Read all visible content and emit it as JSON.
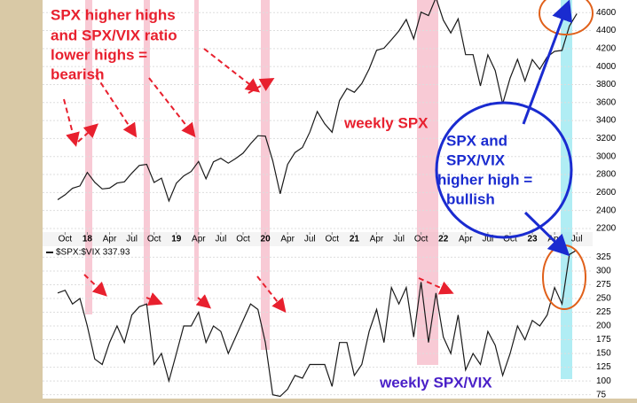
{
  "chart_data": [
    {
      "type": "line",
      "annotations": {
        "bearish": [
          "SPX higher highs",
          "and SPX/VIX ratio",
          "lower highs =",
          "bearish"
        ],
        "weekly": "weekly SPX",
        "bullish": [
          "SPX and",
          "SPX/VIX",
          "higher high =",
          "bullish"
        ]
      },
      "categories": [
        null,
        "Oct",
        null,
        null,
        "18",
        null,
        null,
        "Apr",
        null,
        null,
        "Jul",
        null,
        null,
        "Oct",
        null,
        null,
        "19",
        null,
        null,
        "Apr",
        null,
        null,
        "Jul",
        null,
        null,
        "Oct",
        null,
        null,
        "20",
        null,
        null,
        "Apr",
        null,
        null,
        "Jul",
        null,
        null,
        "Oct",
        null,
        null,
        "21",
        null,
        null,
        "Apr",
        null,
        null,
        "Jul",
        null,
        null,
        "Oct",
        null,
        null,
        "22",
        null,
        null,
        "Apr",
        null,
        null,
        "Jul",
        null,
        null,
        "Oct",
        null,
        null,
        "23",
        null,
        null,
        "Apr",
        null,
        null,
        "Jul"
      ],
      "series": [
        {
          "color": "#1a1a1a",
          "values": [
            2519,
            2575,
            2647,
            2673,
            2823,
            2713,
            2640,
            2648,
            2705,
            2718,
            2816,
            2901,
            2913,
            2711,
            2760,
            2506,
            2704,
            2784,
            2834,
            2945,
            2752,
            2941,
            2980,
            2926,
            2977,
            3037,
            3141,
            3231,
            3226,
            2954,
            2585,
            2912,
            3044,
            3100,
            3271,
            3500,
            3363,
            3270,
            3622,
            3756,
            3714,
            3811,
            3973,
            4181,
            4204,
            4298,
            4395,
            4523,
            4308,
            4605,
            4567,
            4766,
            4516,
            4374,
            4530,
            4132,
            4132,
            3785,
            4130,
            3955,
            3586,
            3872,
            4080,
            3840,
            4077,
            3970,
            4109,
            4169,
            4180,
            4450,
            4588
          ]
        }
      ],
      "ylim": [
        2160,
        4740
      ],
      "yticks": [
        2200,
        2400,
        2600,
        2800,
        3000,
        3200,
        3400,
        3600,
        3800,
        4000,
        4200,
        4400,
        4600
      ],
      "grid": true
    },
    {
      "type": "line",
      "annotations": {
        "weekly": "weekly SPX/VIX"
      },
      "series": [
        {
          "name": "$SPX:$VIX 337.93",
          "color": "#1a1a1a",
          "values": [
            260,
            265,
            240,
            250,
            200,
            140,
            130,
            170,
            200,
            170,
            220,
            235,
            240,
            130,
            150,
            100,
            150,
            200,
            200,
            225,
            170,
            200,
            190,
            150,
            180,
            210,
            240,
            230,
            170,
            75,
            72,
            85,
            110,
            105,
            130,
            130,
            130,
            90,
            170,
            170,
            110,
            130,
            190,
            230,
            170,
            270,
            240,
            270,
            180,
            280,
            170,
            260,
            180,
            150,
            220,
            120,
            150,
            130,
            190,
            165,
            110,
            150,
            200,
            175,
            210,
            200,
            220,
            270,
            240,
            330,
            338
          ]
        }
      ],
      "ylim": [
        68,
        345
      ],
      "yticks": [
        75,
        100,
        125,
        150,
        175,
        200,
        225,
        250,
        275,
        300,
        325
      ],
      "grid": true
    }
  ]
}
